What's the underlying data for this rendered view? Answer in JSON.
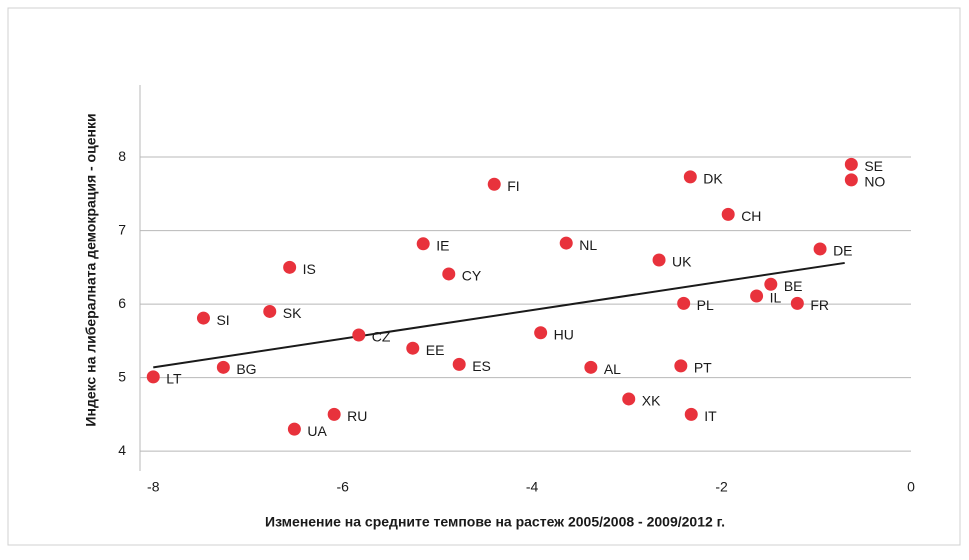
{
  "chart_data": {
    "type": "scatter",
    "xlabel": "Изменение на средните темпове на растеж 2005/2008 - 2009/2012 г.",
    "ylabel": "Индекс на либералната демокрация - оценки",
    "labels": [
      "SE",
      "NO",
      "DK",
      "FI",
      "CH",
      "IE",
      "NL",
      "DE",
      "UK",
      "IS",
      "CY",
      "BE",
      "IL",
      "FR",
      "PL",
      "SK",
      "SI",
      "CZ",
      "HU",
      "EE",
      "ES",
      "BG",
      "AL",
      "PT",
      "LT",
      "XK",
      "RU",
      "IT",
      "UA"
    ],
    "x": [
      -0.63,
      -0.63,
      -2.33,
      -4.4,
      -1.93,
      -5.15,
      -3.64,
      -0.96,
      -2.66,
      -6.56,
      -4.88,
      -1.48,
      -1.63,
      -1.2,
      -2.4,
      -6.77,
      -7.47,
      -5.83,
      -3.91,
      -5.26,
      -4.77,
      -7.26,
      -3.38,
      -2.43,
      -8.0,
      -2.98,
      -6.09,
      -2.32,
      -6.51
    ],
    "values": [
      7.9,
      7.69,
      7.73,
      7.63,
      7.22,
      6.82,
      6.83,
      6.75,
      6.6,
      6.5,
      6.41,
      6.27,
      6.11,
      6.01,
      6.01,
      5.9,
      5.81,
      5.58,
      5.61,
      5.4,
      5.18,
      5.14,
      5.14,
      5.16,
      5.01,
      4.71,
      4.5,
      4.5,
      4.3
    ],
    "color": "#e8323c",
    "trendline": {
      "x": [
        -8.0,
        -0.7
      ],
      "values": [
        5.14,
        6.56
      ],
      "color": "#1a1a1a"
    },
    "xlim": [
      -8.14,
      0
    ],
    "ylim": [
      3.73,
      8.98
    ],
    "xticks": [
      -8,
      -6,
      -4,
      -2,
      0
    ],
    "yticks": [
      4,
      5,
      6,
      7,
      8
    ],
    "grid": true
  }
}
